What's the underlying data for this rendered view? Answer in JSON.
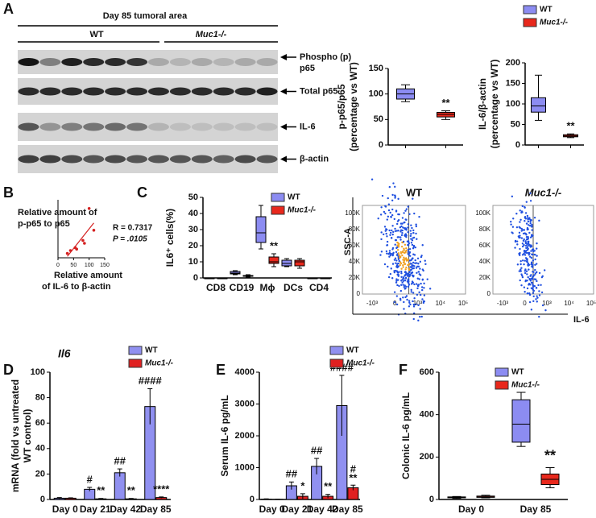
{
  "panels": [
    "A",
    "B",
    "C",
    "D",
    "E",
    "F"
  ],
  "blot": {
    "header": "Day 85 tumoral area",
    "groups": [
      "WT",
      "Muc1-/-"
    ],
    "labels": [
      [
        "Phospho (p)",
        "p65"
      ],
      [
        "Total p65"
      ],
      [
        "IL-6"
      ],
      [
        "β-actin"
      ]
    ]
  },
  "flow": {
    "titles": [
      "WT",
      "Muc1-/-"
    ],
    "ylabel": "SSC-A",
    "xlabel": "IL-6",
    "yticks": [
      "100K",
      "80K",
      "60K",
      "40K",
      "20K",
      "0"
    ],
    "xticks": [
      "-10³",
      "0",
      "10³",
      "10⁴",
      "10⁵"
    ]
  },
  "chart_data": [
    {
      "type": "box",
      "ylabel": [
        "p-p65/p65",
        "(percentage vs WT)"
      ],
      "categories": [
        null
      ],
      "ylim": [
        0,
        150
      ],
      "yticks": [
        0,
        50,
        100,
        150
      ],
      "series": [
        {
          "color": "#8c8cf2",
          "values": [
            {
              "min": 85,
              "q1": 90,
              "median": 100,
              "q3": 110,
              "max": 118
            }
          ]
        },
        {
          "color": "#e8281c",
          "values": [
            {
              "min": 50,
              "q1": 55,
              "median": 60,
              "q3": 64,
              "max": 67
            }
          ],
          "annotations": [
            "**"
          ]
        }
      ]
    },
    {
      "type": "box",
      "ylabel": [
        "IL-6/β-actin",
        "(percentage vs WT)"
      ],
      "categories": [
        null
      ],
      "ylim": [
        0,
        200
      ],
      "yticks": [
        0,
        50,
        100,
        150,
        200
      ],
      "legend": true,
      "series": [
        {
          "name": "WT",
          "color": "#8c8cf2",
          "values": [
            {
              "min": 60,
              "q1": 80,
              "median": 95,
              "q3": 115,
              "max": 170
            }
          ]
        },
        {
          "name": "Muc1-/-",
          "color": "#e8281c",
          "values": [
            {
              "min": 18,
              "q1": 20,
              "median": 22,
              "q3": 25,
              "max": 27
            }
          ],
          "annotations": [
            "**"
          ]
        }
      ]
    },
    {
      "type": "scatter",
      "xlabel": [
        "Relative amount",
        "of IL-6 to β-actin"
      ],
      "ylabel": [
        "Relative amount of",
        "p-p65 to p65"
      ],
      "xlim": [
        0,
        150
      ],
      "xticks": [
        0,
        50,
        100,
        150
      ],
      "ylim": [
        0,
        200
      ],
      "color": "#d42020",
      "x": [
        30,
        40,
        55,
        60,
        80,
        85,
        100,
        115
      ],
      "y": [
        15,
        25,
        35,
        30,
        60,
        50,
        170,
        95
      ],
      "stats": [
        "R = 0.7317",
        "P = .0105"
      ]
    },
    {
      "type": "box",
      "ylabel": [
        "IL6⁺ cells(%)"
      ],
      "categories": [
        "CD8",
        "CD19",
        "Mϕ",
        "DCs",
        "CD4"
      ],
      "ylim": [
        0,
        50
      ],
      "yticks": [
        0,
        10,
        20,
        30,
        40,
        50
      ],
      "legend": true,
      "series": [
        {
          "name": "WT",
          "color": "#8c8cf2",
          "values": [
            {
              "min": 0,
              "q1": 0,
              "median": 0,
              "q3": 0,
              "max": 0
            },
            {
              "min": 2,
              "q1": 2.5,
              "median": 3,
              "q3": 4,
              "max": 4.5
            },
            {
              "min": 18,
              "q1": 22,
              "median": 28,
              "q3": 38,
              "max": 45
            },
            {
              "min": 7,
              "q1": 7.5,
              "median": 9,
              "q3": 11,
              "max": 12
            },
            {
              "min": 0,
              "q1": 0,
              "median": 0,
              "q3": 0,
              "max": 0
            }
          ]
        },
        {
          "name": "Muc1-/-",
          "color": "#e8281c",
          "values": [
            {
              "min": 0,
              "q1": 0,
              "median": 0,
              "q3": 0,
              "max": 0
            },
            {
              "min": 0.5,
              "q1": 1,
              "median": 1.2,
              "q3": 1.5,
              "max": 2
            },
            {
              "min": 7,
              "q1": 9,
              "median": 10,
              "q3": 13,
              "max": 15
            },
            {
              "min": 6,
              "q1": 7.5,
              "median": 10,
              "q3": 11,
              "max": 12
            },
            {
              "min": 0,
              "q1": 0,
              "median": 0,
              "q3": 0,
              "max": 0
            }
          ],
          "annotations": [
            null,
            null,
            "**",
            null,
            null
          ]
        }
      ]
    },
    {
      "type": "bar",
      "title": "Il6",
      "ylabel": [
        "mRNA (fold vs untreated",
        "WT control)"
      ],
      "categories": [
        "Day 0",
        "Day 21",
        "Day 42",
        "Day 85"
      ],
      "ylim": [
        0,
        100
      ],
      "yticks": [
        0,
        20,
        40,
        60,
        80,
        100
      ],
      "legend": true,
      "series": [
        {
          "name": "WT",
          "color": "#9090f0",
          "values": [
            1,
            8,
            21,
            73
          ],
          "errors": [
            0.5,
            1.5,
            3,
            14
          ],
          "annotations": [
            null,
            "#",
            "##",
            "####"
          ]
        },
        {
          "name": "Muc1-/-",
          "color": "#e02020",
          "values": [
            1,
            0.5,
            0.5,
            1.5
          ],
          "errors": [
            0.3,
            0.3,
            0.3,
            0.5
          ],
          "annotations": [
            null,
            "**",
            "**",
            "****"
          ]
        }
      ]
    },
    {
      "type": "bar",
      "ylabel": [
        "Serum IL-6 pg/mL"
      ],
      "categories": [
        "Day 0",
        "Day 21",
        "Day 42",
        "Day 85"
      ],
      "ylim": [
        0,
        4000
      ],
      "yticks": [
        0,
        1000,
        2000,
        3000,
        4000
      ],
      "legend": true,
      "series": [
        {
          "name": "WT",
          "color": "#9090f0",
          "values": [
            10,
            430,
            1040,
            2950
          ],
          "errors": [
            10,
            120,
            250,
            950
          ],
          "annotations": [
            null,
            "##",
            "##",
            "####"
          ]
        },
        {
          "name": "Muc1-/-",
          "color": "#e02020",
          "values": [
            5,
            100,
            100,
            370
          ],
          "errors": [
            5,
            80,
            60,
            80
          ],
          "annotations": [
            null,
            "*",
            "**",
            [
              "#",
              "**"
            ]
          ]
        }
      ]
    },
    {
      "type": "box",
      "ylabel": [
        "Colonic IL-6 pg/mL"
      ],
      "categories": [
        "Day 0",
        "Day 85"
      ],
      "ylim": [
        0,
        600
      ],
      "yticks": [
        0,
        200,
        400,
        600
      ],
      "legend": true,
      "series": [
        {
          "name": "WT",
          "color": "#8c8cf2",
          "values": [
            {
              "min": 5,
              "q1": 8,
              "median": 10,
              "q3": 12,
              "max": 14
            },
            {
              "min": 250,
              "q1": 270,
              "median": 355,
              "q3": 470,
              "max": 505
            }
          ]
        },
        {
          "name": "Muc1-/-",
          "color": "#e8281c",
          "values": [
            {
              "min": 8,
              "q1": 10,
              "median": 12,
              "q3": 16,
              "max": 20
            },
            {
              "min": 55,
              "q1": 70,
              "median": 95,
              "q3": 120,
              "max": 150
            }
          ],
          "annotations": [
            null,
            "**"
          ]
        }
      ]
    }
  ]
}
